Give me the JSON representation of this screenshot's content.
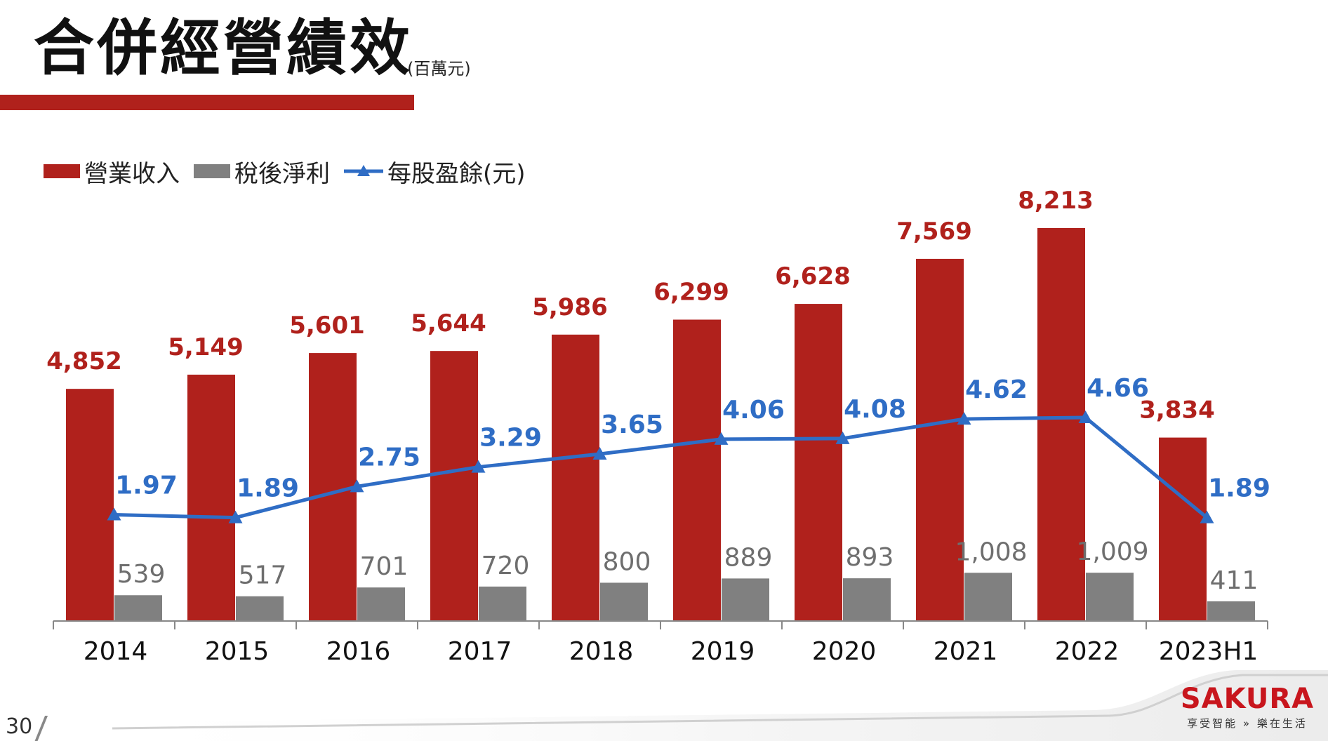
{
  "header": {
    "title": "合併經營績效",
    "unit": "(百萬元)"
  },
  "page_number": "30",
  "logo": {
    "name": "SAKURA",
    "tagline": "享受智能 » 樂在生活"
  },
  "colors": {
    "revenue": "#B0211C",
    "net_income": "#808080",
    "eps": "#2F6DC5",
    "accent_bar": "#B0211C"
  },
  "chart_data": {
    "type": "bar",
    "categories": [
      "2014",
      "2015",
      "2016",
      "2017",
      "2018",
      "2019",
      "2020",
      "2021",
      "2022",
      "2023H1"
    ],
    "series": [
      {
        "name": "營業收入",
        "type": "bar",
        "values": [
          4852,
          5149,
          5601,
          5644,
          5986,
          6299,
          6628,
          7569,
          8213,
          3834
        ],
        "labels": [
          "4,852",
          "5,149",
          "5,601",
          "5,644",
          "5,986",
          "6,299",
          "6,628",
          "7,569",
          "8,213",
          "3,834"
        ]
      },
      {
        "name": "稅後淨利",
        "type": "bar",
        "values": [
          539,
          517,
          701,
          720,
          800,
          889,
          893,
          1008,
          1009,
          411
        ],
        "labels": [
          "539",
          "517",
          "701",
          "720",
          "800",
          "889",
          "893",
          "1,008",
          "1,009",
          "411"
        ]
      },
      {
        "name": "每股盈餘(元)",
        "type": "line",
        "values": [
          1.97,
          1.89,
          2.75,
          3.29,
          3.65,
          4.06,
          4.08,
          4.62,
          4.66,
          1.89
        ],
        "labels": [
          "1.97",
          "1.89",
          "2.75",
          "3.29",
          "3.65",
          "4.06",
          "4.08",
          "4.62",
          "4.66",
          "1.89"
        ]
      }
    ],
    "xlabel": "",
    "ylabel": "",
    "ylim": [
      0,
      8213
    ],
    "y2lim": [
      0,
      8.2
    ],
    "grid": false,
    "legend": "top-left"
  }
}
